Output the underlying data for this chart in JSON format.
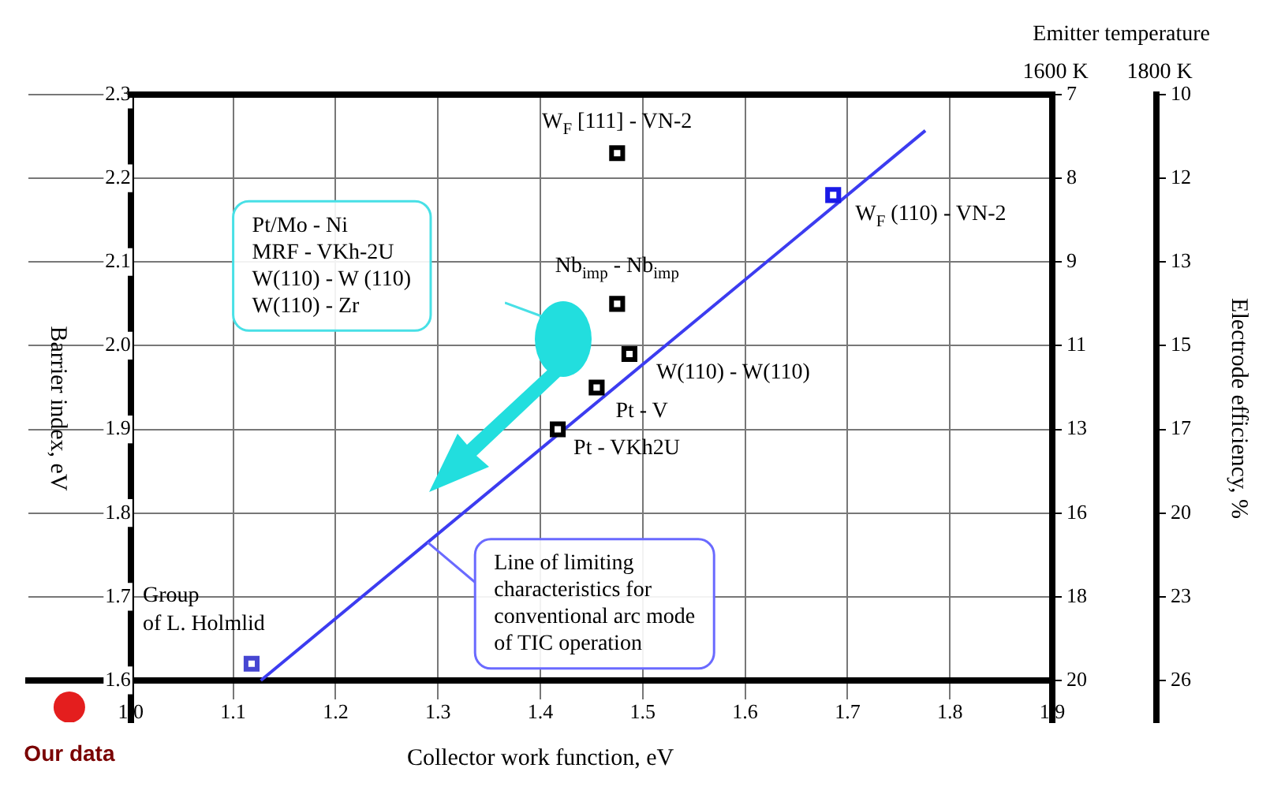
{
  "chart_data": {
    "type": "scatter",
    "xlabel": "Collector work function, eV",
    "ylabel": "Barrier index, eV",
    "y3label": "Electrode efficiency, %",
    "xlim": [
      0.9,
      1.9
    ],
    "xticks": [
      {
        "value": 1,
        "label": "1.0"
      },
      1.1,
      1.2,
      1.3,
      1.4,
      1.5,
      1.6,
      1.7,
      1.8,
      1.9
    ],
    "ylim": [
      1.55,
      2.3
    ],
    "yticks": [
      1.6,
      1.7,
      1.8,
      1.9,
      {
        "value": 2,
        "label": "2.0"
      },
      2.1,
      2.2,
      2.3
    ],
    "y2_categories": [
      "7",
      "8",
      "9",
      "11",
      "13",
      "16",
      "18",
      "20"
    ],
    "grid": true,
    "series": [
      {
        "type": "scatter",
        "marker": "square",
        "color": "#000000",
        "x": [
          1.475,
          1.475,
          1.487,
          1.455,
          1.417
        ],
        "values": [
          2.23,
          2.05,
          1.99,
          1.95,
          1.9
        ]
      },
      {
        "type": "scatter",
        "marker": "square",
        "color": "#1a1ae6",
        "x": [
          1.686
        ],
        "values": [
          2.18
        ]
      },
      {
        "type": "scatter",
        "marker": "square",
        "color": "#4646d2",
        "x": [
          1.118
        ],
        "values": [
          1.62
        ]
      },
      {
        "type": "scatter",
        "marker": "circle",
        "color": "#e41e1e",
        "x": [
          0.94
        ],
        "values": [
          1.568
        ]
      },
      {
        "type": "line",
        "marker": "none",
        "color": "#3c3cf0",
        "x": [
          1.127,
          1.776
        ],
        "values": [
          1.6,
          2.257
        ]
      }
    ],
    "annotations": [
      "Emitter temperature",
      "1600 K",
      "1800 K",
      {
        "text": "W$_{F}$ [111] - VN-2",
        "x": 1.475,
        "y": 2.23
      },
      {
        "text": "W$_{F}$ (110) - VN-2",
        "x": 1.686,
        "y": 2.18
      },
      {
        "text": "Nb$_{imp}$ - Nb$_{imp}$",
        "x": 1.475,
        "y": 2.05
      },
      {
        "text": "W(110) - W(110)",
        "x": 1.487,
        "y": 1.99
      },
      {
        "text": "Pt - V",
        "x": 1.455,
        "y": 1.95
      },
      {
        "text": "Pt - VKh2U",
        "x": 1.417,
        "y": 1.9
      },
      {
        "text": "Group\nof L. Holmlid",
        "x": 1.118,
        "y": 1.62
      },
      {
        "text": "Our data",
        "x": 0.94,
        "y": 1.568
      },
      "Pt/Mo - Ni\nMRF - VKh-2U\nW(110) - W (110)\nW(110) - Zr",
      {
        "text": "Line of limiting\ncharacteristics for\nconventional arc mode\nof TIC operation",
        "x": 1.29,
        "y": 1.765
      },
      "10",
      "12",
      "13",
      "15",
      "17",
      "20",
      "23",
      "26"
    ]
  }
}
